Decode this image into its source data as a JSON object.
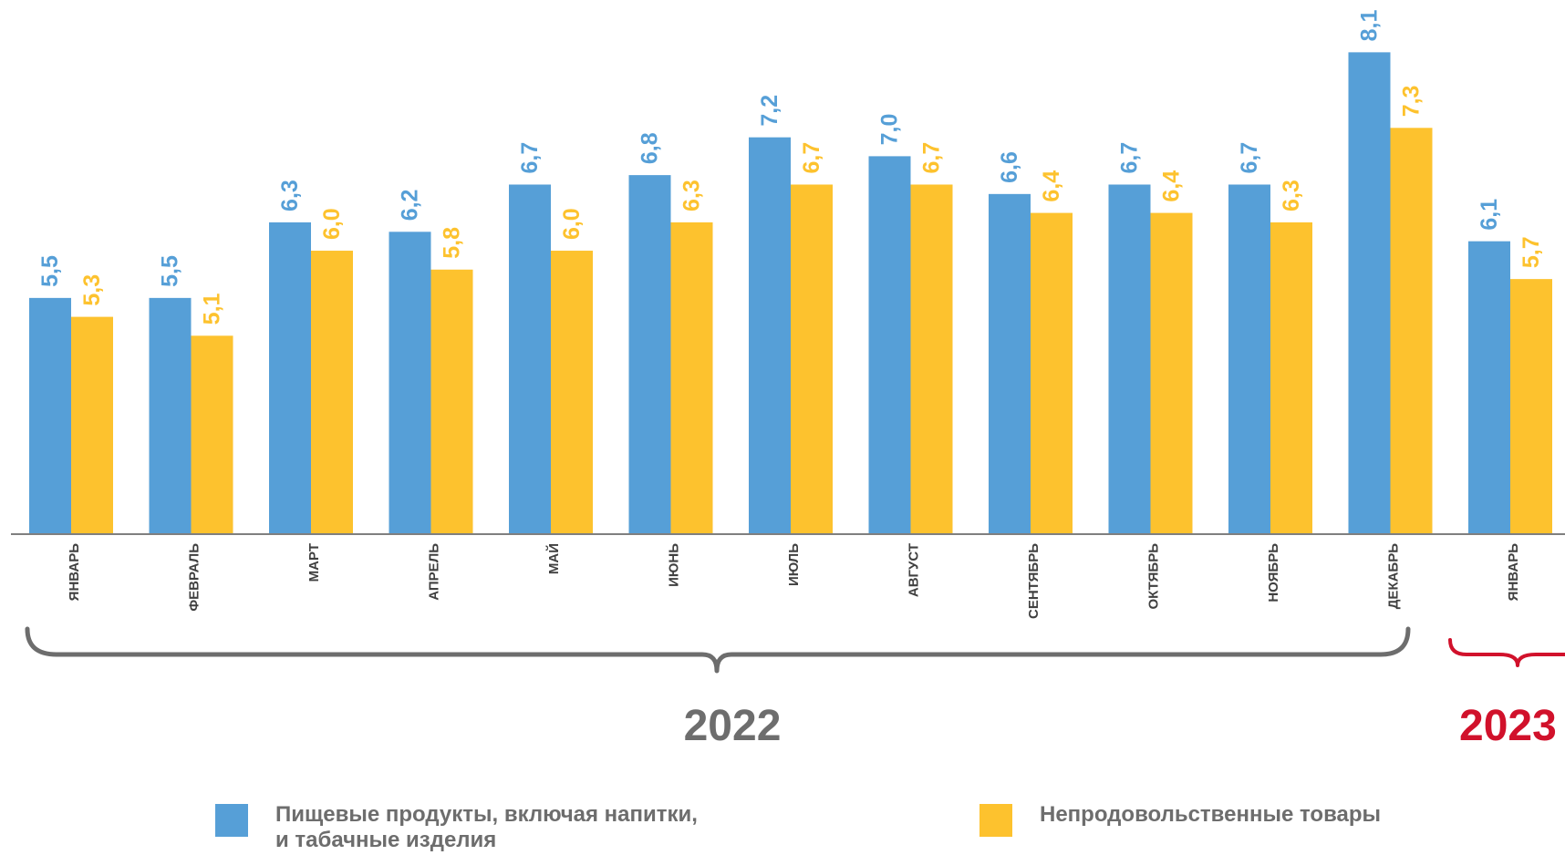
{
  "chart_data": {
    "type": "bar",
    "categories": [
      "ЯНВАРЬ",
      "ФЕВРАЛЬ",
      "МАРТ",
      "АПРЕЛЬ",
      "МАЙ",
      "ИЮНЬ",
      "ИЮЛЬ",
      "АВГУСТ",
      "СЕНТЯБРЬ",
      "ОКТЯБРЬ",
      "НОЯБРЬ",
      "ДЕКАБРЬ",
      "ЯНВАРЬ"
    ],
    "series": [
      {
        "name": "Пищевые продукты, включая напитки, и табачные изделия",
        "name_lines": [
          "Пищевые продукты, включая напитки,",
          "и табачные изделия"
        ],
        "color": "#569fd7",
        "values": [
          5.5,
          5.5,
          6.3,
          6.2,
          6.7,
          6.8,
          7.2,
          7.0,
          6.6,
          6.7,
          6.7,
          8.1,
          6.1
        ],
        "labels": [
          "5,5",
          "5,5",
          "6,3",
          "6,2",
          "6,7",
          "6,8",
          "7,2",
          "7,0",
          "6,6",
          "6,7",
          "6,7",
          "8,1",
          "6,1"
        ]
      },
      {
        "name": "Непродовольственные товары",
        "color": "#fdc22e",
        "values": [
          5.3,
          5.1,
          6.0,
          5.8,
          6.0,
          6.3,
          6.7,
          6.7,
          6.4,
          6.4,
          6.3,
          7.3,
          5.7
        ],
        "labels": [
          "5,3",
          "5,1",
          "6,0",
          "5,8",
          "6,0",
          "6,3",
          "6,7",
          "6,7",
          "6,4",
          "6,4",
          "6,3",
          "7,3",
          "5,7"
        ]
      }
    ],
    "groups": [
      {
        "label": "2022",
        "color": "#6d6d6d"
      },
      {
        "label": "2023",
        "color": "#d1112b"
      }
    ],
    "ylim": [
      3.0,
      8.2
    ],
    "legend_position": "bottom",
    "grid": false,
    "xlabel": "",
    "ylabel": ""
  }
}
